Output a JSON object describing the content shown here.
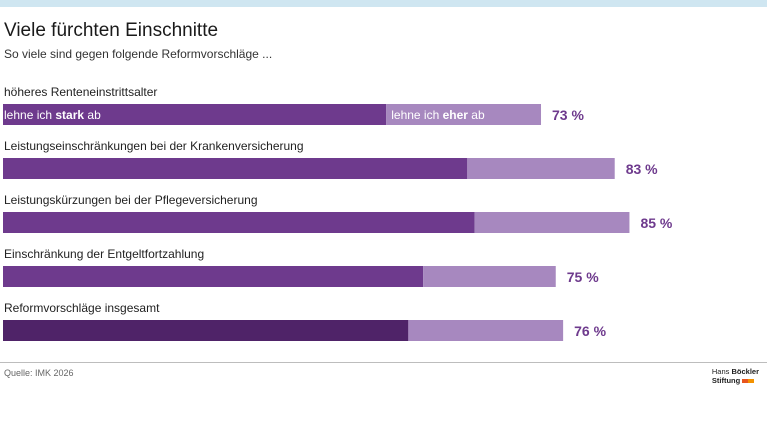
{
  "header": {
    "title": "Viele fürchten Einschnitte",
    "subtitle": "So viele sind gegen folgende Reformvorschläge ..."
  },
  "chart_data": {
    "type": "bar",
    "orientation": "horizontal",
    "stacked": true,
    "categories": [
      "höheres Renteneinstrittsalter",
      "Leistungseinschränkungen bei der Krankenversicherung",
      "Leistungskürzungen bei der Pflegeversicherung",
      "Einschränkung der Entgeltfortzahlung",
      "Reformvorschläge insgesamt"
    ],
    "series": [
      {
        "name": "lehne ich stark ab",
        "values": [
          52,
          63,
          64,
          57,
          55
        ]
      },
      {
        "name": "lehne ich eher ab",
        "values": [
          21,
          20,
          21,
          18,
          21
        ]
      }
    ],
    "totals": [
      73,
      83,
      85,
      75,
      76
    ],
    "total_labels": [
      "73 %",
      "83 %",
      "85 %",
      "75 %",
      "76 %"
    ],
    "inline_labels": {
      "strong_prefix": "lehne ich ",
      "strong_bold": "stark",
      "strong_suffix": " ab",
      "eher_prefix": "lehne ich ",
      "eher_bold": "eher",
      "eher_suffix": " ab"
    },
    "xlim": [
      0,
      100
    ],
    "grid": false,
    "legend": "inline",
    "colors": {
      "strong": "#6e3a8d",
      "strong_highlight": "#4f2368",
      "eher": "#a788bf",
      "total_label": "#6e3a8d"
    }
  },
  "footer": {
    "source": "Quelle: IMK 2026",
    "logo_line1_normal": "Hans ",
    "logo_line1_bold": "Böckler",
    "logo_line2_bold": "Stiftung"
  }
}
